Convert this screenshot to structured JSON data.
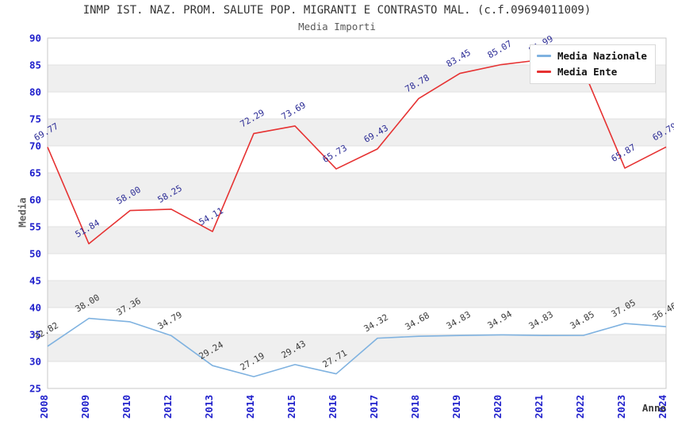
{
  "header": {
    "title": "INMP IST. NAZ. PROM. SALUTE POP. MIGRANTI E CONTRASTO MAL. (c.f.09694011009)",
    "subtitle": "Media Importi"
  },
  "chart_data": {
    "type": "line",
    "title": "INMP IST. NAZ. PROM. SALUTE POP. MIGRANTI E CONTRASTO MAL. (c.f.09694011009)",
    "subtitle": "Media Importi",
    "xlabel": "Anno",
    "ylabel": "Media",
    "ylim": [
      25,
      90
    ],
    "ytick_step": 5,
    "ytick_labels": [
      "25",
      "30",
      "35",
      "40",
      "45",
      "50",
      "55",
      "60",
      "65",
      "70",
      "75",
      "80",
      "85",
      "90"
    ],
    "grid": "horizontal-bands-alternating",
    "legend_position": "top-right",
    "categories": [
      "2008",
      "2009",
      "2010",
      "2012",
      "2013",
      "2014",
      "2015",
      "2016",
      "2017",
      "2018",
      "2019",
      "2020",
      "2021",
      "2022",
      "2023",
      "2024"
    ],
    "series": [
      {
        "name": "Media Nazionale",
        "color": "#7fb2e0",
        "label_color": "#3c3c3c",
        "values": [
          32.82,
          38.0,
          37.36,
          34.79,
          29.24,
          27.19,
          29.43,
          27.71,
          34.32,
          34.68,
          34.83,
          34.94,
          34.83,
          34.85,
          37.05,
          36.46
        ],
        "labels": [
          "32.82",
          "38.00",
          "37.36",
          "34.79",
          "29.24",
          "27.19",
          "29.43",
          "27.71",
          "34.32",
          "34.68",
          "34.83",
          "34.94",
          "34.83",
          "34.85",
          "37.05",
          "36.46"
        ]
      },
      {
        "name": "Media Ente",
        "color": "#e63232",
        "label_color": "#2d2d96",
        "values": [
          69.77,
          51.84,
          58.0,
          58.25,
          54.11,
          72.29,
          73.69,
          65.73,
          69.43,
          78.78,
          83.45,
          85.07,
          85.99,
          84.0,
          65.87,
          69.79
        ],
        "labels": [
          "69.77",
          "51.84",
          "58.00",
          "58.25",
          "54.11",
          "72.29",
          "73.69",
          "65.73",
          "69.43",
          "78.78",
          "83.45",
          "85.07",
          "85.99",
          "",
          "65.87",
          "69.79"
        ]
      }
    ]
  },
  "colors": {
    "tick_label": "#2121cc",
    "band_gray": "#efefef",
    "gridline": "#e2e2e2",
    "plot_border": "#c9c9c9",
    "title_text": "#333333",
    "subtitle_text": "#5a5a5a"
  }
}
